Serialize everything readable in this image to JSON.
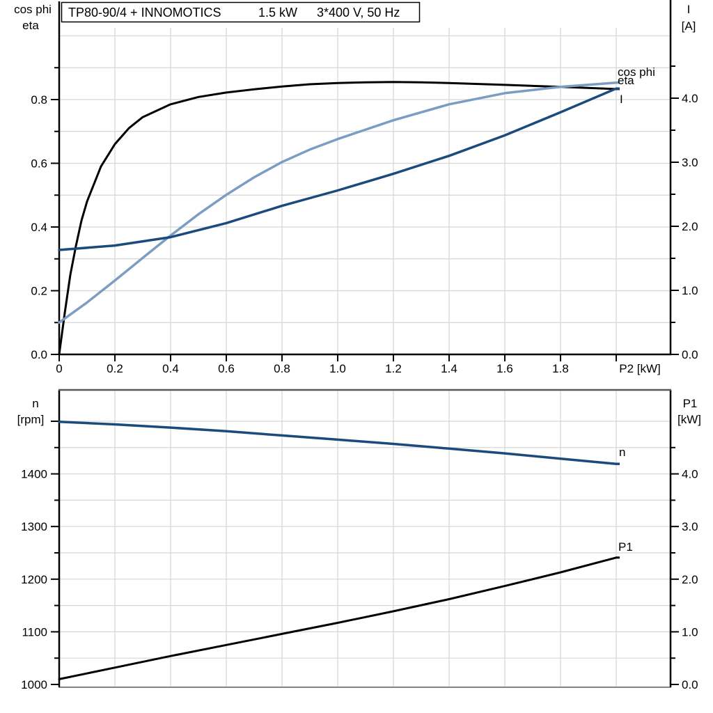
{
  "title": {
    "parts": [
      "TP80-90/4 + INNOMOTICS",
      "1.5 kW",
      "3*400 V, 50 Hz"
    ],
    "full": "TP80-90/4 + INNOMOTICS 1.5 kW 3*400 V, 50 Hz"
  },
  "colors": {
    "black": "#000000",
    "steel_blue": "#7b9dc4",
    "navy": "#1b4a7c",
    "grid": "#d6d6d6",
    "frame": "#595959",
    "thin_line": "#3c3c3c",
    "background": "#ffffff"
  },
  "chart_data": [
    {
      "name": "motor-electrical-curves",
      "type": "line",
      "x": {
        "axis_label": "P2 [kW]",
        "min": 0,
        "max": 2.0,
        "ticks": [
          0,
          0.2,
          0.4,
          0.6,
          0.8,
          1.0,
          1.2,
          1.4,
          1.6,
          1.8,
          2.0
        ],
        "tick_labels": [
          "0",
          "0.2",
          "0.4",
          "0.6",
          "0.8",
          "1.0",
          "1.2",
          "1.4",
          "1.6",
          "1.8",
          ""
        ],
        "gridlines": [
          0.2,
          0.4,
          0.6,
          0.8,
          1.0,
          1.2,
          1.4,
          1.6,
          1.8,
          2.0
        ]
      },
      "left": {
        "header": [
          "cos phi",
          "eta"
        ],
        "min": 0,
        "max": 1.0251,
        "ticks": [
          0,
          0.2,
          0.4,
          0.6,
          0.8
        ],
        "tick_labels": [
          "0.0",
          "0.2",
          "0.4",
          "0.6",
          "0.8"
        ],
        "minor_ticks": [
          0.1,
          0.3,
          0.5,
          0.7,
          0.9
        ],
        "gridlines": [
          0.1,
          0.2,
          0.3,
          0.4,
          0.5,
          0.6,
          0.7,
          0.8,
          0.9,
          1.0
        ]
      },
      "right": {
        "header": [
          "I",
          "[A]"
        ],
        "min": 0,
        "max": 5.0978,
        "ticks": [
          0,
          1.0,
          2.0,
          3.0,
          4.0
        ],
        "tick_labels": [
          "0.0",
          "1.0",
          "2.0",
          "3.0",
          "4.0"
        ],
        "minor_ticks": [
          0.5,
          1.5,
          2.5,
          3.5,
          4.5
        ],
        "gridlines": []
      },
      "series": [
        {
          "name": "eta",
          "label": "eta",
          "axis": "left",
          "color": "black",
          "x": [
            0,
            0.02,
            0.04,
            0.06,
            0.08,
            0.1,
            0.15,
            0.2,
            0.25,
            0.3,
            0.4,
            0.5,
            0.6,
            0.7,
            0.8,
            0.9,
            1.0,
            1.1,
            1.2,
            1.3,
            1.4,
            1.6,
            1.8,
            2.0
          ],
          "y": [
            0,
            0.13,
            0.25,
            0.34,
            0.42,
            0.48,
            0.59,
            0.66,
            0.71,
            0.745,
            0.785,
            0.808,
            0.822,
            0.832,
            0.841,
            0.848,
            0.852,
            0.854,
            0.855,
            0.854,
            0.852,
            0.846,
            0.84,
            0.833
          ]
        },
        {
          "name": "cos-phi",
          "label": "cos phi",
          "axis": "left",
          "color": "steel_blue",
          "x": [
            0,
            0.1,
            0.2,
            0.3,
            0.4,
            0.5,
            0.6,
            0.7,
            0.8,
            0.9,
            1.0,
            1.2,
            1.4,
            1.6,
            1.8,
            2.0
          ],
          "y": [
            0.1,
            0.163,
            0.232,
            0.303,
            0.373,
            0.44,
            0.501,
            0.556,
            0.604,
            0.643,
            0.676,
            0.735,
            0.785,
            0.82,
            0.84,
            0.853
          ]
        },
        {
          "name": "current",
          "label": "I",
          "axis": "right",
          "color": "navy",
          "x": [
            0,
            0.2,
            0.4,
            0.6,
            0.8,
            1.0,
            1.2,
            1.4,
            1.6,
            1.8,
            2.0
          ],
          "y": [
            1.63,
            1.7,
            1.83,
            2.05,
            2.32,
            2.56,
            2.82,
            3.1,
            3.42,
            3.78,
            4.15
          ]
        }
      ]
    },
    {
      "name": "motor-mechanical-curves",
      "type": "line",
      "x": {
        "axis_label": "",
        "min": 0,
        "max": 2.0,
        "ticks": [],
        "tick_labels": [],
        "gridlines": [
          0.2,
          0.4,
          0.6,
          0.8,
          1.0,
          1.2,
          1.4,
          1.6,
          1.8,
          2.0
        ]
      },
      "left": {
        "header": [
          "n",
          "[rpm]"
        ],
        "min": 1000,
        "max": 1559.5,
        "ticks": [
          1000,
          1100,
          1200,
          1300,
          1400,
          1500
        ],
        "tick_labels": [
          "1000",
          "1100",
          "1200",
          "1300",
          "1400",
          ""
        ],
        "minor_ticks": [
          1050,
          1150,
          1250,
          1350,
          1450
        ],
        "gridlines": [
          1050,
          1100,
          1150,
          1200,
          1250,
          1300,
          1350,
          1400,
          1450,
          1500
        ]
      },
      "right": {
        "header": [
          "P1",
          "[kW]"
        ],
        "min": 0,
        "max": 5.595,
        "ticks": [
          0,
          1.0,
          2.0,
          3.0,
          4.0
        ],
        "tick_labels": [
          "0.0",
          "1.0",
          "2.0",
          "3.0",
          "4.0"
        ],
        "minor_ticks": [
          0.5,
          1.5,
          2.5,
          3.5,
          4.5
        ],
        "gridlines": []
      },
      "series": [
        {
          "name": "speed",
          "label": "n",
          "axis": "left",
          "color": "navy",
          "x": [
            0,
            0.2,
            0.4,
            0.6,
            0.8,
            1.0,
            1.2,
            1.4,
            1.6,
            1.8,
            2.0
          ],
          "y": [
            1499,
            1494,
            1488,
            1481,
            1473,
            1465,
            1457,
            1448,
            1439,
            1429,
            1419
          ]
        },
        {
          "name": "input-power",
          "label": "P1",
          "axis": "right",
          "color": "black",
          "x": [
            0,
            0.2,
            0.4,
            0.6,
            0.8,
            1.0,
            1.2,
            1.4,
            1.6,
            1.8,
            2.0
          ],
          "y": [
            0.1,
            0.32,
            0.54,
            0.75,
            0.96,
            1.17,
            1.39,
            1.62,
            1.87,
            2.13,
            2.41
          ]
        }
      ]
    }
  ]
}
